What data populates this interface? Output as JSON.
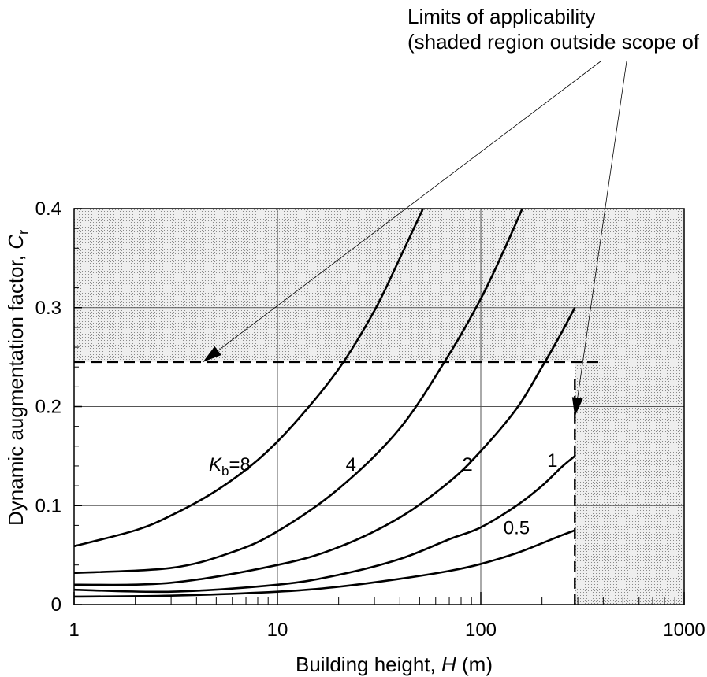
{
  "chart_data": {
    "type": "line",
    "title": "",
    "xlabel": {
      "prefix": "Building height, ",
      "var": "H",
      "suffix": " (m)"
    },
    "ylabel": {
      "prefix": "Dynamic augmentation factor, ",
      "var": "C",
      "sub": "r"
    },
    "xscale": "log",
    "xlim": [
      1,
      1000
    ],
    "ylim": [
      0,
      0.4
    ],
    "grid": true,
    "x_ticks": [
      1,
      10,
      100,
      1000
    ],
    "x_tick_labels": [
      "1",
      "10",
      "100",
      "1000"
    ],
    "y_ticks": [
      0,
      0.1,
      0.2,
      0.3,
      0.4
    ],
    "y_tick_labels": [
      "0",
      "0.1",
      "0.2",
      "0.3",
      "0.4"
    ],
    "series": [
      {
        "name": "8",
        "label_prefix": "K",
        "label_sub": "b",
        "label_eq": "=",
        "label_anchor_x": 4.6,
        "label_anchor_y": 0.135,
        "x": [
          1,
          2,
          3,
          5,
          8,
          12,
          20,
          30,
          40,
          52
        ],
        "y": [
          0.059,
          0.075,
          0.09,
          0.115,
          0.146,
          0.182,
          0.238,
          0.297,
          0.35,
          0.4
        ]
      },
      {
        "name": "4",
        "label_anchor_x": 23,
        "label_anchor_y": 0.135,
        "x": [
          1,
          3,
          6,
          10,
          20,
          40,
          70,
          100,
          130,
          160
        ],
        "y": [
          0.032,
          0.037,
          0.053,
          0.074,
          0.117,
          0.178,
          0.253,
          0.309,
          0.358,
          0.4
        ]
      },
      {
        "name": "2",
        "label_anchor_x": 86,
        "label_anchor_y": 0.135,
        "x": [
          1,
          3,
          10,
          20,
          40,
          70,
          100,
          150,
          200,
          250,
          290
        ],
        "y": [
          0.02,
          0.022,
          0.04,
          0.058,
          0.088,
          0.124,
          0.155,
          0.198,
          0.24,
          0.275,
          0.3
        ]
      },
      {
        "name": "1",
        "label_anchor_x": 225,
        "label_anchor_y": 0.139,
        "x": [
          1,
          3,
          10,
          20,
          40,
          70,
          100,
          150,
          200,
          250,
          290
        ],
        "y": [
          0.015,
          0.013,
          0.02,
          0.03,
          0.046,
          0.066,
          0.078,
          0.1,
          0.12,
          0.139,
          0.15
        ]
      },
      {
        "name": "0.5",
        "label_anchor_x": 150,
        "label_anchor_y": 0.071,
        "x": [
          1,
          3,
          10,
          20,
          40,
          70,
          100,
          150,
          200,
          250,
          290
        ],
        "y": [
          0.008,
          0.009,
          0.013,
          0.018,
          0.026,
          0.034,
          0.041,
          0.052,
          0.062,
          0.07,
          0.075
        ]
      }
    ],
    "shaded_region": {
      "min_x": 290,
      "min_y": 0.245,
      "pattern": "stipple"
    },
    "limit_lines": {
      "x": 290,
      "y": 0.245,
      "style": "dashed"
    },
    "annotation": {
      "lines": [
        "Limits of applicability",
        "(shaded region outside scope of"
      ],
      "arrow_targets": [
        [
          4.3,
          0.245
        ],
        [
          290,
          0.19
        ]
      ]
    },
    "colors": {
      "curve": "#000000",
      "grid": "#555555",
      "shade": "#9a9a9a",
      "background": "#ffffff"
    }
  }
}
